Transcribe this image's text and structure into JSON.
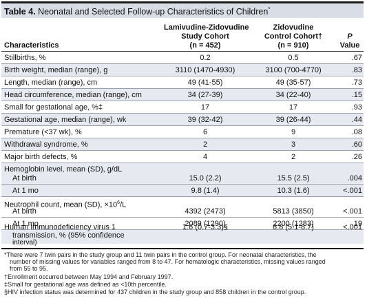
{
  "table": {
    "number": "Table 4.",
    "caption": "Neonatal and Selected Follow-up Characteristics of Children",
    "caption_mark": "*"
  },
  "headers": {
    "characteristics": "Characteristics",
    "study": [
      "Lamivudine-Zidovudine",
      "Study Cohort",
      "(n = 452)"
    ],
    "control": [
      "Zidovudine",
      "Control Cohort†",
      "(n = 910)"
    ],
    "p": [
      "P",
      "Value"
    ]
  },
  "rows": [
    {
      "label": "Stillbirths, %",
      "study": "0.2",
      "control": "0.5",
      "p": ".67"
    },
    {
      "label": "Birth weight, median (range), g",
      "study": "3110 (1470-4930)",
      "control": "3100 (700-4770)",
      "p": ".83"
    },
    {
      "label": "Length, median (range), cm",
      "study": "49 (41-55)",
      "control": "49 (35-57)",
      "p": ".73"
    },
    {
      "label": "Head circumference, median (range), cm",
      "study": "34 (27-39)",
      "control": "34 (22-40)",
      "p": ".15"
    },
    {
      "label": "Small for gestational age, %‡",
      "study": "17",
      "control": "17",
      "p": ".93"
    },
    {
      "label": "Gestational age, median (range), wk",
      "study": "39 (32-42)",
      "control": "39 (26-44)",
      "p": ".44"
    },
    {
      "label": "Premature (<37 wk), %",
      "study": "6",
      "control": "9",
      "p": ".08"
    },
    {
      "label": "Withdrawal syndrome, %",
      "study": "2",
      "control": "3",
      "p": ".60"
    },
    {
      "label": "Major birth defects, %",
      "study": "4",
      "control": "2",
      "p": ".26"
    }
  ],
  "hemoglobin": {
    "label": "Hemoglobin level, mean (SD), g/dL",
    "at_birth": {
      "label": "At birth",
      "study": "15.0 (2.2)",
      "control": "15.5 (2.5)",
      "p": ".004"
    },
    "at_1mo": {
      "label": "At 1 mo",
      "study": "9.8 (1.4)",
      "control": "10.3 (1.6)",
      "p": "<.001"
    }
  },
  "neutrophil": {
    "label_pre": "Neutrophil count, mean (SD), ×10",
    "label_exp": "6",
    "label_post": "/L",
    "at_birth": {
      "label": "At birth",
      "study": "4392 (2473)",
      "control": "5813 (3850)",
      "p": "<.001"
    },
    "at_1mo": {
      "label": "At 1 mo",
      "study": "2089 (1290)",
      "control": "2200 (1283)",
      "p": ".19"
    }
  },
  "hiv": {
    "label_lines": [
      "Human immunodeficiency virus 1",
      "transmission, % (95% confidence",
      "interval)"
    ],
    "study": "1.6 (0.7-3.3)§",
    "control": "6.8 (5.1-8.7)",
    "p": "<.001"
  },
  "footnotes": [
    "*There were 7 twin pairs in the study group and 11 twin pairs in the control group. For neonatal characteristics, the",
    "number of missing values for variables ranged from 8 to 47. For hematologic characteristics, missing values ranged",
    "from 55 to 95.",
    "†Enrollment occurred between May 1994 and February 1997.",
    "‡Small for gestational age was defined as <10th percentile.",
    "§HIV infection status was determined for 437 children in the study group and 858 children in the control group."
  ]
}
